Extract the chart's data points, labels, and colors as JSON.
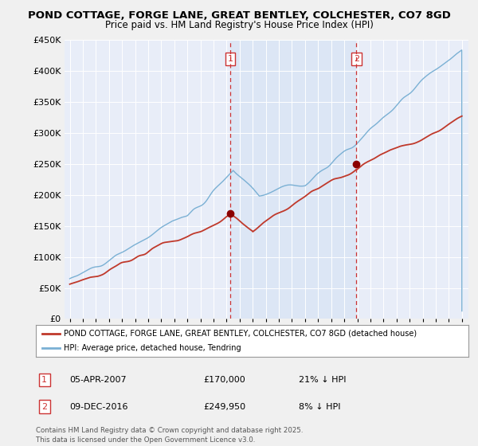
{
  "title": "POND COTTAGE, FORGE LANE, GREAT BENTLEY, COLCHESTER, CO7 8GD",
  "subtitle": "Price paid vs. HM Land Registry's House Price Index (HPI)",
  "red_line_label": "POND COTTAGE, FORGE LANE, GREAT BENTLEY, COLCHESTER, CO7 8GD (detached house)",
  "blue_line_label": "HPI: Average price, detached house, Tendring",
  "footer": "Contains HM Land Registry data © Crown copyright and database right 2025.\nThis data is licensed under the Open Government Licence v3.0.",
  "annotations": [
    {
      "num": "1",
      "date": "05-APR-2007",
      "price": "£170,000",
      "hpi": "21% ↓ HPI",
      "year": 2007.27
    },
    {
      "num": "2",
      "date": "09-DEC-2016",
      "price": "£249,950",
      "hpi": "8% ↓ HPI",
      "year": 2016.92
    }
  ],
  "sale_prices": [
    170000,
    249950
  ],
  "ylim": [
    0,
    450000
  ],
  "yticks": [
    0,
    50000,
    100000,
    150000,
    200000,
    250000,
    300000,
    350000,
    400000,
    450000
  ],
  "year_start": 1995,
  "year_end": 2025,
  "fig_bg": "#f0f0f0",
  "plot_bg": "#e8edf8",
  "shade_color": "#dce6f5"
}
